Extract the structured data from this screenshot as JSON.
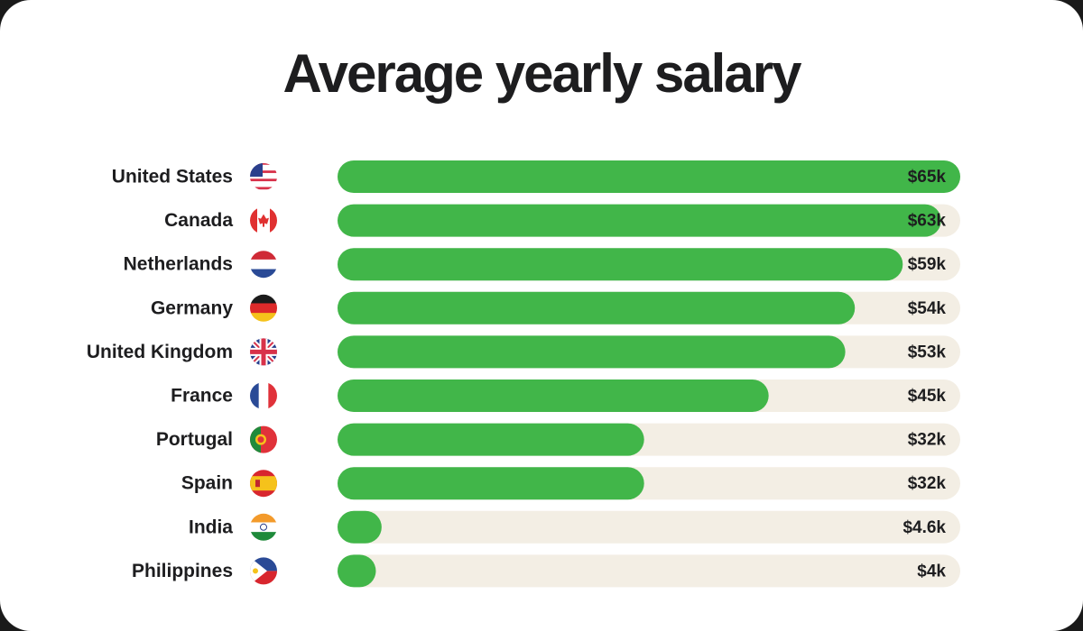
{
  "chart_data": {
    "type": "bar",
    "orientation": "horizontal",
    "title": "Average yearly salary",
    "categories": [
      "United States",
      "Canada",
      "Netherlands",
      "Germany",
      "United Kingdom",
      "France",
      "Portugal",
      "Spain",
      "India",
      "Philippines"
    ],
    "values": [
      65,
      63,
      59,
      54,
      53,
      45,
      32,
      32,
      4.6,
      4
    ],
    "value_labels": [
      "$65k",
      "$63k",
      "$59k",
      "$54k",
      "$53k",
      "$45k",
      "$32k",
      "$32k",
      "$4.6k",
      "$4k"
    ],
    "color": "#41b649",
    "track_color": "#f3eee4"
  }
}
